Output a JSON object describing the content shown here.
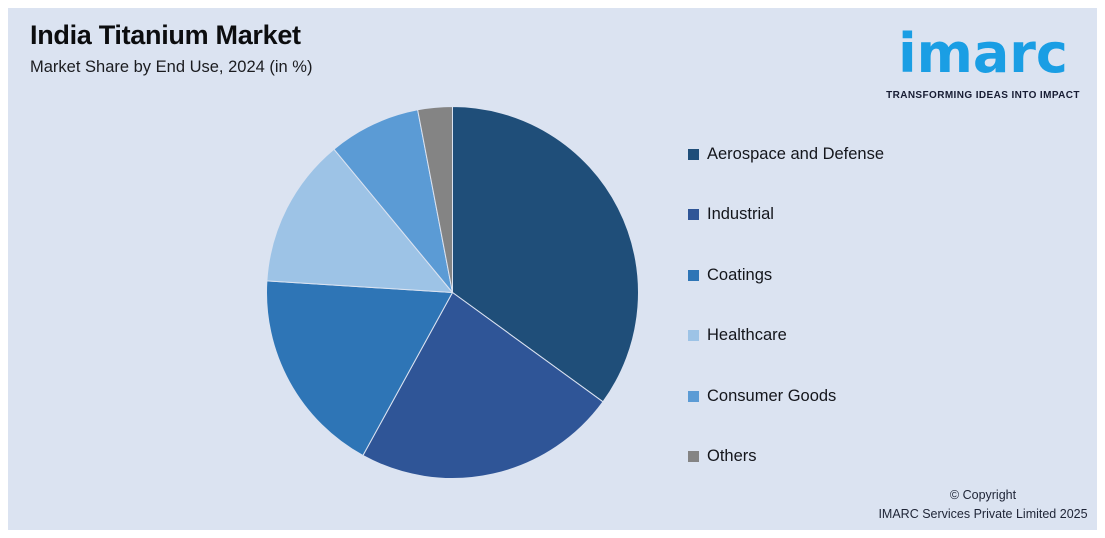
{
  "header": {
    "title": "India Titanium Market",
    "subtitle": "Market Share by End Use, 2024 (in %)"
  },
  "logo": {
    "wordmark": "imarc",
    "tagline": "TRANSFORMING IDEAS INTO IMPACT",
    "brand_color": "#1a9ee4"
  },
  "chart_data": {
    "type": "pie",
    "title": "India Titanium Market",
    "subtitle": "Market Share by End Use, 2024 (in %)",
    "unit": "%",
    "start_angle_deg": 0,
    "direction": "clockwise",
    "legend_position": "right",
    "values_labeled_on_chart": false,
    "background_color": "#dbe3f1",
    "segments": [
      {
        "label": "Aerospace and Defense",
        "value": 35,
        "color": "#1F4E79"
      },
      {
        "label": "Industrial",
        "value": 23,
        "color": "#2F5597"
      },
      {
        "label": "Coatings",
        "value": 18,
        "color": "#2E75B6"
      },
      {
        "label": "Healthcare",
        "value": 13,
        "color": "#9DC3E6"
      },
      {
        "label": "Consumer Goods",
        "value": 8,
        "color": "#5B9BD5"
      },
      {
        "label": "Others",
        "value": 3,
        "color": "#848484"
      }
    ]
  },
  "footer": {
    "copyright_line1": "© Copyright",
    "copyright_line2": "IMARC Services Private Limited 2025"
  }
}
